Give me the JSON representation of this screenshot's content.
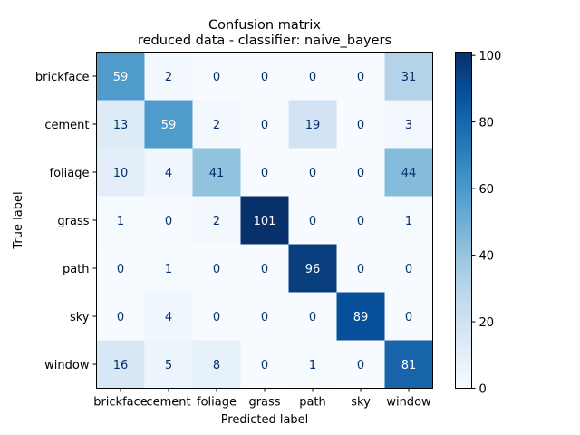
{
  "chart_data": {
    "type": "heatmap",
    "title": "Confusion matrix",
    "subtitle": "reduced data - classifier: naive_bayers",
    "xlabel": "Predicted label",
    "ylabel": "True label",
    "x_categories": [
      "brickface",
      "cement",
      "foliage",
      "grass",
      "path",
      "sky",
      "window"
    ],
    "y_categories": [
      "brickface",
      "cement",
      "foliage",
      "grass",
      "path",
      "sky",
      "window"
    ],
    "matrix": [
      [
        59,
        2,
        0,
        0,
        0,
        0,
        31
      ],
      [
        13,
        59,
        2,
        0,
        19,
        0,
        3
      ],
      [
        10,
        4,
        41,
        0,
        0,
        0,
        44
      ],
      [
        1,
        0,
        2,
        101,
        0,
        0,
        1
      ],
      [
        0,
        1,
        0,
        0,
        96,
        0,
        0
      ],
      [
        0,
        4,
        0,
        0,
        0,
        89,
        0
      ],
      [
        16,
        5,
        8,
        0,
        1,
        0,
        81
      ]
    ],
    "colormap": "Blues",
    "color_range": [
      0,
      101
    ],
    "colorbar_ticks": [
      0,
      20,
      40,
      60,
      80,
      100
    ],
    "text_color_light": "#ffffff",
    "text_color_dark": "#08306b"
  }
}
